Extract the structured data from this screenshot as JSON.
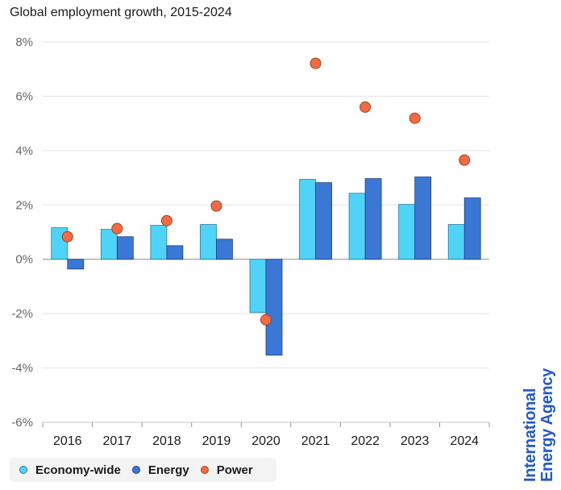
{
  "chart_data": {
    "type": "bar",
    "title": "Global employment growth, 2015-2024",
    "xlabel": "",
    "ylabel": "",
    "categories": [
      "2016",
      "2017",
      "2018",
      "2019",
      "2020",
      "2021",
      "2022",
      "2023",
      "2024"
    ],
    "series": [
      {
        "name": "Economy-wide",
        "kind": "bar",
        "color": "#4fd3f7",
        "stroke": "#2a7a9a",
        "values": [
          1.16,
          1.1,
          1.25,
          1.28,
          -1.96,
          2.94,
          2.43,
          2.02,
          1.28
        ]
      },
      {
        "name": "Energy",
        "kind": "bar",
        "color": "#3b78d6",
        "stroke": "#1e3f7a",
        "values": [
          -0.36,
          0.83,
          0.5,
          0.74,
          -3.53,
          2.82,
          2.97,
          3.03,
          2.26
        ]
      },
      {
        "name": "Power",
        "kind": "scatter",
        "color": "#f26b43",
        "stroke": "#a0401f",
        "values": [
          0.83,
          1.13,
          1.42,
          1.96,
          -2.23,
          7.21,
          5.6,
          5.19,
          3.65
        ]
      }
    ],
    "ylim": [
      -6,
      8
    ],
    "yticks": [
      -6,
      -4,
      -2,
      0,
      2,
      4,
      6,
      8
    ],
    "ytick_labels": [
      "-6%",
      "-4%",
      "-2%",
      "0%",
      "2%",
      "4%",
      "6%",
      "8%"
    ],
    "grid": true,
    "legend": "bottom-left"
  },
  "brand": {
    "line1": "International",
    "line2": "Energy Agency",
    "color": "#2159d1"
  }
}
